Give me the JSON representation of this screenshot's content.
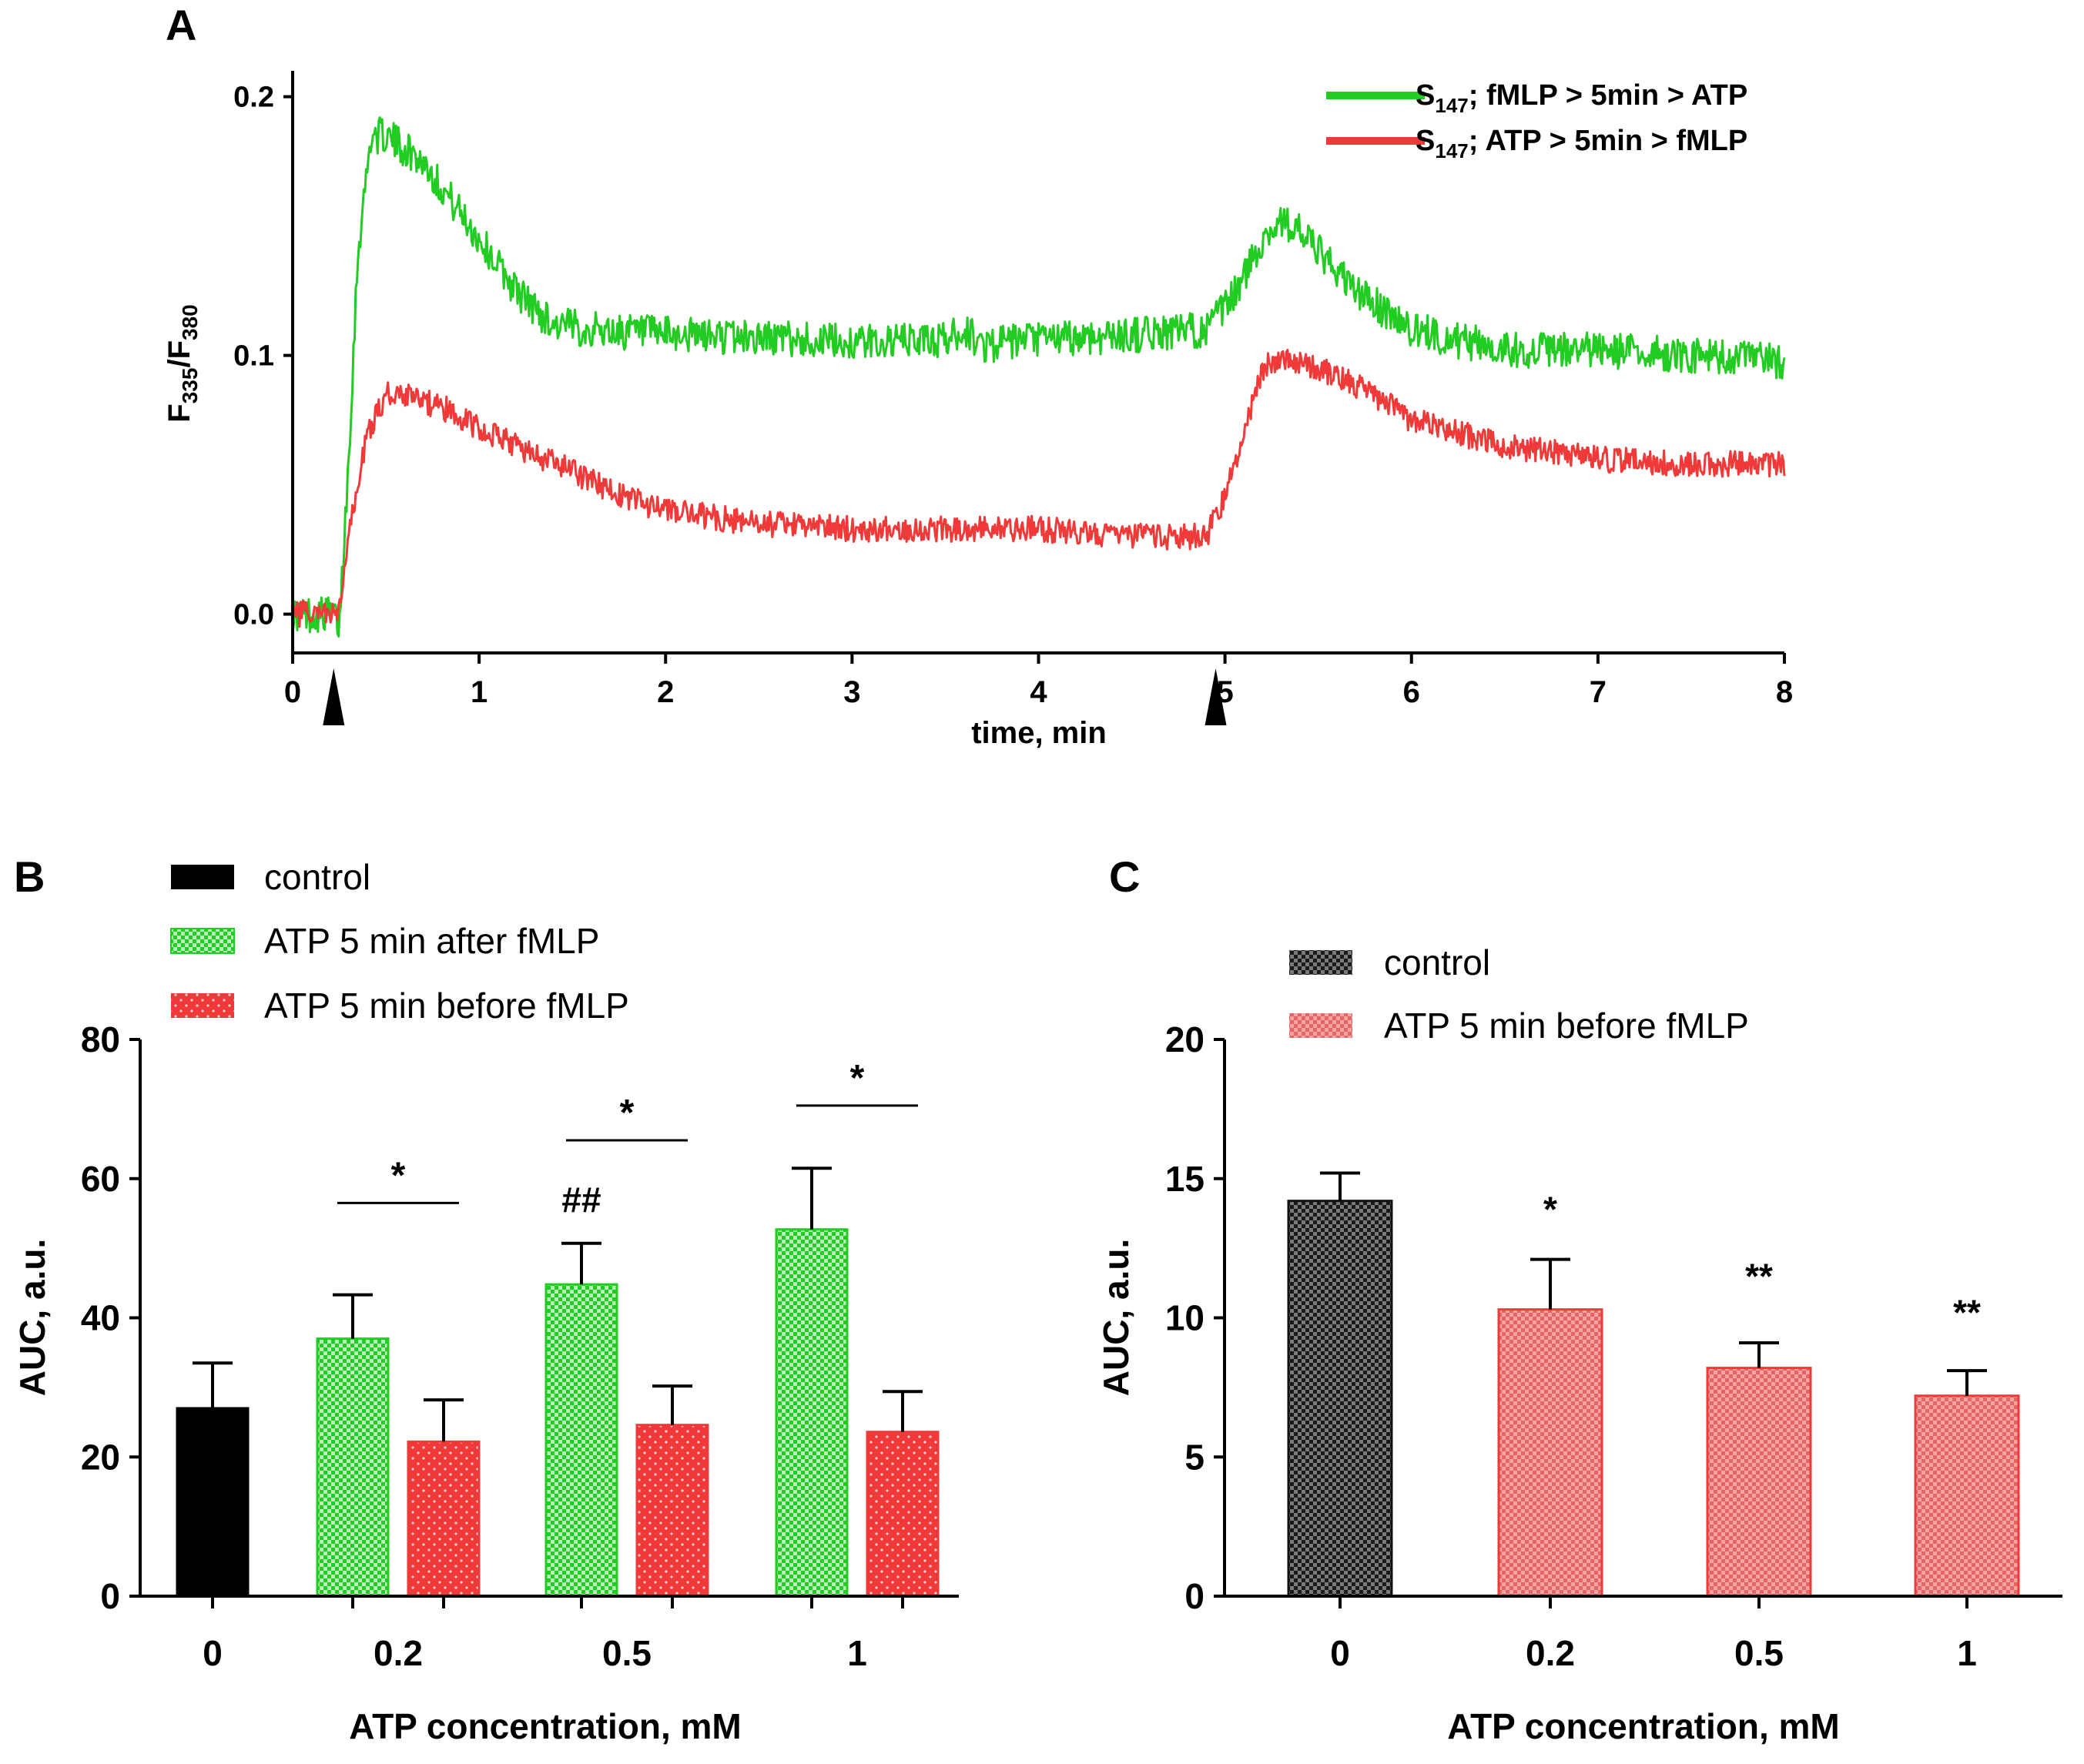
{
  "colors": {
    "green": "#22cc22",
    "red": "#f03a3a",
    "black": "#000000",
    "check_dark": "#222222",
    "check_light": "#777777"
  },
  "chart_data": [
    {
      "type": "line",
      "panel": "A",
      "xlabel": "time, min",
      "ylabel": {
        "base": "F",
        "sub1": "335",
        "mid": "/F",
        "sub2": "380"
      },
      "xlim": [
        0,
        8
      ],
      "ylim": [
        -0.015,
        0.21
      ],
      "xticks": [
        "0",
        "1",
        "2",
        "3",
        "4",
        "5",
        "6",
        "7",
        "8"
      ],
      "yticks": [
        "0.0",
        "0.1",
        "0.2"
      ],
      "ytick_values": [
        0.0,
        0.1,
        0.2
      ],
      "stimulus_arrows_min": [
        0.22,
        4.95
      ],
      "series": [
        {
          "name": {
            "pre": "S",
            "sub": "147",
            "post": "; fMLP > 5min > ATP"
          },
          "color": "green",
          "noise": 0.007,
          "x": [
            0,
            0.22,
            0.25,
            0.3,
            0.35,
            0.42,
            0.5,
            0.6,
            0.7,
            0.8,
            0.9,
            1.0,
            1.1,
            1.2,
            1.3,
            1.4,
            1.6,
            2.0,
            2.5,
            3.0,
            3.5,
            3.6,
            3.7,
            4.0,
            4.5,
            4.9,
            5.0,
            5.1,
            5.2,
            5.3,
            5.4,
            5.5,
            5.7,
            6.0,
            6.3,
            6.6,
            7.0,
            7.5,
            8.0
          ],
          "y": [
            0.0,
            0.0,
            -0.005,
            0.06,
            0.14,
            0.185,
            0.185,
            0.18,
            0.175,
            0.165,
            0.155,
            0.145,
            0.135,
            0.125,
            0.118,
            0.112,
            0.11,
            0.108,
            0.107,
            0.105,
            0.106,
            0.11,
            0.104,
            0.106,
            0.108,
            0.11,
            0.118,
            0.13,
            0.145,
            0.152,
            0.148,
            0.14,
            0.125,
            0.11,
            0.105,
            0.102,
            0.102,
            0.1,
            0.098
          ]
        },
        {
          "name": {
            "pre": "S",
            "sub": "147",
            "post": "; ATP > 5min > fMLP"
          },
          "color": "red",
          "noise": 0.005,
          "x": [
            0,
            0.25,
            0.3,
            0.4,
            0.5,
            0.6,
            0.7,
            0.8,
            1.0,
            1.2,
            1.5,
            1.8,
            2.0,
            2.5,
            3.0,
            3.5,
            4.0,
            4.5,
            4.9,
            5.0,
            5.1,
            5.2,
            5.3,
            5.5,
            5.8,
            6.0,
            6.5,
            7.0,
            7.5,
            8.0
          ],
          "y": [
            0.0,
            0.0,
            0.03,
            0.07,
            0.085,
            0.085,
            0.082,
            0.08,
            0.072,
            0.065,
            0.055,
            0.045,
            0.04,
            0.035,
            0.033,
            0.033,
            0.033,
            0.03,
            0.03,
            0.045,
            0.07,
            0.095,
            0.1,
            0.095,
            0.085,
            0.075,
            0.065,
            0.06,
            0.058,
            0.058
          ]
        }
      ]
    },
    {
      "type": "bar",
      "panel": "B",
      "xlabel": "ATP concentration, mM",
      "ylabel": "AUC, a.u.",
      "ylim": [
        0,
        80
      ],
      "yticks": [
        "0",
        "20",
        "40",
        "60",
        "80"
      ],
      "ytick_values": [
        0,
        20,
        40,
        60,
        80
      ],
      "categories": [
        "0",
        "0.2",
        "0.5",
        "1"
      ],
      "series": [
        {
          "name": "control",
          "color": "black",
          "pattern": "solid",
          "values": [
            27,
            null,
            null,
            null
          ],
          "errors": [
            6.5,
            null,
            null,
            null
          ]
        },
        {
          "name": "ATP 5 min after fMLP",
          "color": "green",
          "pattern": "check",
          "values": [
            null,
            37,
            44.8,
            52.7
          ],
          "errors": [
            null,
            6.3,
            5.9,
            8.8
          ]
        },
        {
          "name": "ATP 5 min before fMLP",
          "color": "red",
          "pattern": "dots",
          "values": [
            null,
            22.2,
            24.6,
            23.6
          ],
          "errors": [
            null,
            6.0,
            5.6,
            5.8
          ]
        }
      ],
      "annotations": [
        {
          "text": "*",
          "category": "0.2",
          "y": 56.5,
          "bracket": true
        },
        {
          "text": "*",
          "category": "0.5",
          "y": 65.5,
          "bracket": true
        },
        {
          "text": "*",
          "category": "1",
          "y": 70.5,
          "bracket": true
        },
        {
          "text": "##",
          "category": "0.5",
          "series": "ATP 5 min after fMLP",
          "y": 57
        }
      ]
    },
    {
      "type": "bar",
      "panel": "C",
      "xlabel": "ATP concentration, mM",
      "ylabel": "AUC, a.u.",
      "ylim": [
        0,
        20
      ],
      "yticks": [
        "0",
        "5",
        "10",
        "15",
        "20"
      ],
      "ytick_values": [
        0,
        5,
        10,
        15,
        20
      ],
      "categories": [
        "0",
        "0.2",
        "0.5",
        "1"
      ],
      "series": [
        {
          "name": "control",
          "color": "check_dark",
          "pattern": "check-dark",
          "values": [
            14.2,
            null,
            null,
            null
          ],
          "errors": [
            1.0,
            null,
            null,
            null
          ]
        },
        {
          "name": "ATP 5 min before fMLP",
          "color": "red",
          "pattern": "check-red",
          "values": [
            null,
            10.3,
            8.2,
            7.2
          ],
          "errors": [
            null,
            1.8,
            0.9,
            0.9
          ]
        }
      ],
      "annotations": [
        {
          "text": "*",
          "category": "0.2",
          "y": 13.9
        },
        {
          "text": "**",
          "category": "0.5",
          "y": 11.5
        },
        {
          "text": "**",
          "category": "1",
          "y": 10.2
        }
      ]
    }
  ]
}
